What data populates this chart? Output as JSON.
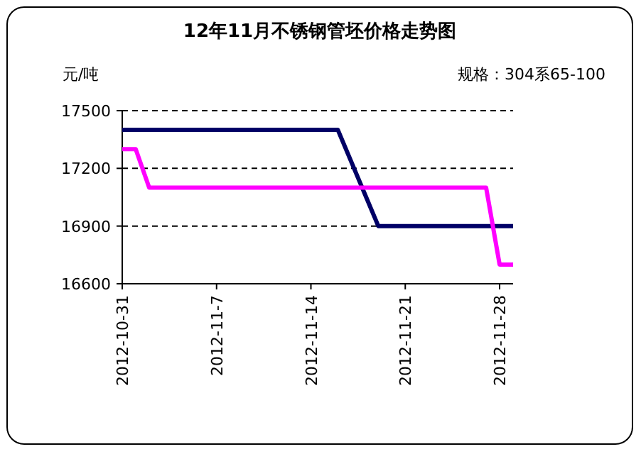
{
  "chart_data": {
    "type": "line",
    "title": "12年11月不锈钢管坯价格走势图",
    "ylabel": "元/吨",
    "annotations": [
      "规格：304系65-100"
    ],
    "xlim": [
      "2012-10-31",
      "2012-11-29"
    ],
    "xticks": [
      "2012-10-31",
      {
        "value": "2012-11-07",
        "label": "2012-11-7"
      },
      "2012-11-14",
      "2012-11-21",
      "2012-11-28"
    ],
    "ylim": [
      16600,
      17500
    ],
    "yticks": [
      16600,
      16900,
      17200,
      17500
    ],
    "grid": "y",
    "marker": "none",
    "line_style": "solid",
    "series": [
      {
        "color": "#000066",
        "x": [
          "2012-10-31",
          "2012-11-16",
          "2012-11-19",
          "2012-11-29"
        ],
        "values": [
          17400,
          17400,
          16900,
          16900
        ]
      },
      {
        "color": "#ff00ff",
        "x": [
          "2012-10-31",
          "2012-11-01",
          "2012-11-02",
          "2012-11-27",
          "2012-11-28",
          "2012-11-29"
        ],
        "values": [
          17300,
          17300,
          17100,
          17100,
          16700,
          16700
        ]
      }
    ]
  }
}
